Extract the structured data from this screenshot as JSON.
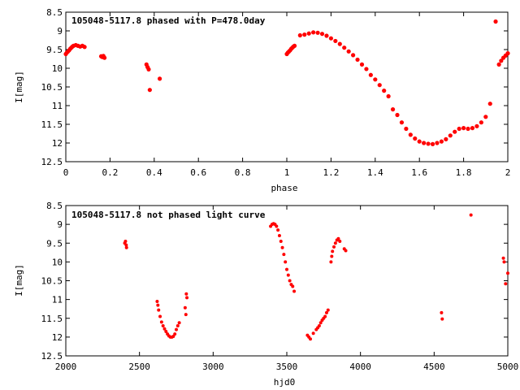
{
  "chart_data": [
    {
      "type": "scatter",
      "title": "105048-5117.8 phased with P=478.0day",
      "xlabel": "phase",
      "ylabel": "I[mag]",
      "xlim": [
        0,
        2
      ],
      "ylim": [
        12.5,
        8.5
      ],
      "y_inverted": true,
      "grid": false,
      "x_ticks": [
        "0",
        "0.2",
        "0.4",
        "0.6",
        "0.8",
        "1",
        "1.2",
        "1.4",
        "1.6",
        "1.8",
        "2"
      ],
      "y_ticks": [
        "8.5",
        "9",
        "9.5",
        "10",
        "10.5",
        "11",
        "11.5",
        "12",
        "12.5"
      ],
      "marker_color": "#ff0000",
      "series": [
        {
          "points": [
            [
              0.0,
              9.62
            ],
            [
              0.005,
              9.58
            ],
            [
              0.01,
              9.55
            ],
            [
              0.015,
              9.52
            ],
            [
              0.02,
              9.48
            ],
            [
              0.025,
              9.45
            ],
            [
              0.03,
              9.42
            ],
            [
              0.035,
              9.4
            ],
            [
              0.045,
              9.38
            ],
            [
              0.055,
              9.4
            ],
            [
              0.065,
              9.42
            ],
            [
              0.075,
              9.4
            ],
            [
              0.085,
              9.43
            ],
            [
              0.16,
              9.68
            ],
            [
              0.165,
              9.7
            ],
            [
              0.17,
              9.67
            ],
            [
              0.175,
              9.72
            ],
            [
              0.365,
              9.9
            ],
            [
              0.37,
              9.97
            ],
            [
              0.375,
              10.03
            ],
            [
              0.38,
              10.58
            ],
            [
              0.425,
              10.28
            ],
            [
              1.0,
              9.62
            ],
            [
              1.005,
              9.58
            ],
            [
              1.01,
              9.55
            ],
            [
              1.015,
              9.52
            ],
            [
              1.02,
              9.48
            ],
            [
              1.025,
              9.45
            ],
            [
              1.03,
              9.42
            ],
            [
              1.035,
              9.4
            ],
            [
              1.06,
              9.12
            ],
            [
              1.08,
              9.1
            ],
            [
              1.1,
              9.07
            ],
            [
              1.12,
              9.04
            ],
            [
              1.14,
              9.05
            ],
            [
              1.16,
              9.08
            ],
            [
              1.18,
              9.13
            ],
            [
              1.2,
              9.2
            ],
            [
              1.22,
              9.27
            ],
            [
              1.24,
              9.35
            ],
            [
              1.26,
              9.45
            ],
            [
              1.28,
              9.55
            ],
            [
              1.3,
              9.65
            ],
            [
              1.32,
              9.77
            ],
            [
              1.34,
              9.9
            ],
            [
              1.36,
              10.02
            ],
            [
              1.38,
              10.18
            ],
            [
              1.4,
              10.3
            ],
            [
              1.42,
              10.45
            ],
            [
              1.44,
              10.6
            ],
            [
              1.46,
              10.75
            ],
            [
              1.48,
              11.1
            ],
            [
              1.5,
              11.25
            ],
            [
              1.52,
              11.45
            ],
            [
              1.54,
              11.62
            ],
            [
              1.56,
              11.78
            ],
            [
              1.58,
              11.88
            ],
            [
              1.6,
              11.96
            ],
            [
              1.62,
              12.0
            ],
            [
              1.64,
              12.02
            ],
            [
              1.66,
              12.03
            ],
            [
              1.68,
              12.0
            ],
            [
              1.7,
              11.96
            ],
            [
              1.72,
              11.9
            ],
            [
              1.74,
              11.8
            ],
            [
              1.76,
              11.7
            ],
            [
              1.78,
              11.62
            ],
            [
              1.8,
              11.6
            ],
            [
              1.82,
              11.62
            ],
            [
              1.84,
              11.6
            ],
            [
              1.86,
              11.55
            ],
            [
              1.88,
              11.45
            ],
            [
              1.9,
              11.3
            ],
            [
              1.92,
              10.95
            ],
            [
              1.945,
              8.75
            ],
            [
              1.96,
              9.9
            ],
            [
              1.97,
              9.8
            ],
            [
              1.98,
              9.72
            ],
            [
              1.99,
              9.66
            ],
            [
              2.0,
              9.6
            ]
          ]
        }
      ]
    },
    {
      "type": "scatter",
      "title": "105048-5117.8 not phased light curve",
      "xlabel": "hjd0",
      "ylabel": "I[mag]",
      "xlim": [
        2000,
        5000
      ],
      "ylim": [
        12.5,
        8.5
      ],
      "y_inverted": true,
      "grid": false,
      "x_ticks": [
        "2000",
        "2500",
        "3000",
        "3500",
        "4000",
        "4500",
        "5000"
      ],
      "y_ticks": [
        "8.5",
        "9",
        "9.5",
        "10",
        "10.5",
        "11",
        "11.5",
        "12",
        "12.5"
      ],
      "marker_color": "#ff0000",
      "series": [
        {
          "points": [
            [
              2400,
              9.5
            ],
            [
              2405,
              9.45
            ],
            [
              2410,
              9.55
            ],
            [
              2412,
              9.62
            ],
            [
              2620,
              11.05
            ],
            [
              2625,
              11.15
            ],
            [
              2630,
              11.28
            ],
            [
              2640,
              11.45
            ],
            [
              2650,
              11.6
            ],
            [
              2660,
              11.7
            ],
            [
              2670,
              11.78
            ],
            [
              2680,
              11.85
            ],
            [
              2690,
              11.92
            ],
            [
              2700,
              11.97
            ],
            [
              2710,
              12.0
            ],
            [
              2720,
              12.0
            ],
            [
              2730,
              11.98
            ],
            [
              2740,
              11.92
            ],
            [
              2750,
              11.8
            ],
            [
              2760,
              11.7
            ],
            [
              2770,
              11.62
            ],
            [
              2810,
              11.22
            ],
            [
              2815,
              11.4
            ],
            [
              2818,
              10.85
            ],
            [
              2822,
              10.95
            ],
            [
              3390,
              9.05
            ],
            [
              3400,
              9.0
            ],
            [
              3410,
              8.98
            ],
            [
              3420,
              9.0
            ],
            [
              3430,
              9.05
            ],
            [
              3440,
              9.15
            ],
            [
              3450,
              9.3
            ],
            [
              3460,
              9.45
            ],
            [
              3470,
              9.62
            ],
            [
              3480,
              9.8
            ],
            [
              3490,
              10.0
            ],
            [
              3500,
              10.2
            ],
            [
              3510,
              10.35
            ],
            [
              3520,
              10.5
            ],
            [
              3530,
              10.6
            ],
            [
              3540,
              10.65
            ],
            [
              3550,
              10.78
            ],
            [
              3640,
              11.95
            ],
            [
              3650,
              12.0
            ],
            [
              3660,
              12.05
            ],
            [
              3680,
              11.9
            ],
            [
              3700,
              11.8
            ],
            [
              3710,
              11.75
            ],
            [
              3720,
              11.7
            ],
            [
              3730,
              11.62
            ],
            [
              3740,
              11.55
            ],
            [
              3750,
              11.5
            ],
            [
              3760,
              11.45
            ],
            [
              3770,
              11.35
            ],
            [
              3780,
              11.28
            ],
            [
              3800,
              10.0
            ],
            [
              3805,
              9.85
            ],
            [
              3810,
              9.72
            ],
            [
              3820,
              9.6
            ],
            [
              3830,
              9.5
            ],
            [
              3840,
              9.42
            ],
            [
              3850,
              9.38
            ],
            [
              3860,
              9.45
            ],
            [
              3890,
              9.65
            ],
            [
              3900,
              9.7
            ],
            [
              4550,
              11.35
            ],
            [
              4555,
              11.52
            ],
            [
              4750,
              8.75
            ],
            [
              4970,
              9.9
            ],
            [
              4975,
              10.0
            ],
            [
              4985,
              10.58
            ],
            [
              5000,
              10.3
            ]
          ]
        }
      ]
    }
  ]
}
